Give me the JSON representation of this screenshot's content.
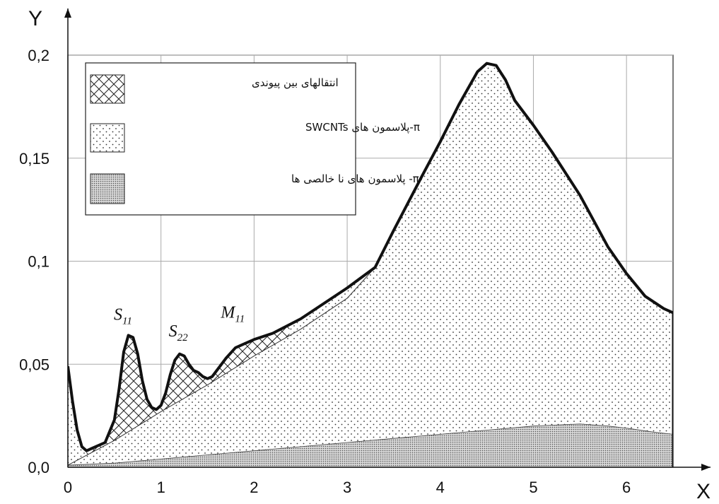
{
  "chart_data": {
    "type": "area",
    "xlabel": "X",
    "ylabel": "Y",
    "xlim": [
      0,
      6.5
    ],
    "ylim": [
      0,
      0.2
    ],
    "x_ticks": [
      "0",
      "1",
      "2",
      "3",
      "4",
      "5",
      "6"
    ],
    "y_ticks": [
      "0,0",
      "0,05",
      "0,1",
      "0,15",
      "0,2"
    ],
    "grid": true,
    "legend_placement": "top-left",
    "legend": [
      {
        "label": "انتقالهای بین پیوندی",
        "pattern": "crosshatch"
      },
      {
        "label": "π-پلاسمون های SWCNTs",
        "pattern": "sparse-dots"
      },
      {
        "label": "π- پلاسمون های نا خالصی ها",
        "pattern": "dense-dots"
      }
    ],
    "annotations": [
      {
        "text": "S",
        "sub": "11",
        "x": 0.63,
        "y": 0.066
      },
      {
        "text": "S",
        "sub": "22",
        "x": 1.22,
        "y": 0.058
      },
      {
        "text": "M",
        "sub": "11",
        "x": 1.78,
        "y": 0.067
      }
    ],
    "series": [
      {
        "role": "total",
        "x": [
          0,
          0.05,
          0.1,
          0.15,
          0.2,
          0.25,
          0.3,
          0.4,
          0.5,
          0.55,
          0.6,
          0.65,
          0.7,
          0.75,
          0.8,
          0.85,
          0.9,
          0.95,
          1.0,
          1.05,
          1.1,
          1.15,
          1.2,
          1.25,
          1.3,
          1.35,
          1.4,
          1.45,
          1.5,
          1.55,
          1.6,
          1.7,
          1.8,
          1.9,
          2.0,
          2.2,
          2.5,
          2.8,
          3.0,
          3.3,
          3.5,
          3.8,
          4.0,
          4.2,
          4.4,
          4.5,
          4.6,
          4.7,
          4.8,
          5.0,
          5.2,
          5.5,
          5.8,
          6.0,
          6.2,
          6.4,
          6.5
        ],
        "y": [
          0.049,
          0.032,
          0.018,
          0.01,
          0.008,
          0.009,
          0.01,
          0.012,
          0.023,
          0.038,
          0.056,
          0.064,
          0.063,
          0.055,
          0.042,
          0.033,
          0.029,
          0.028,
          0.03,
          0.036,
          0.045,
          0.052,
          0.055,
          0.054,
          0.05,
          0.047,
          0.046,
          0.044,
          0.043,
          0.044,
          0.047,
          0.053,
          0.058,
          0.06,
          0.062,
          0.065,
          0.072,
          0.081,
          0.087,
          0.097,
          0.115,
          0.141,
          0.158,
          0.176,
          0.192,
          0.196,
          0.195,
          0.188,
          0.178,
          0.166,
          0.153,
          0.132,
          0.107,
          0.094,
          0.083,
          0.077,
          0.075
        ]
      },
      {
        "role": "baseline",
        "x": [
          0,
          0.5,
          1.0,
          1.5,
          2.0,
          2.5,
          3.0,
          3.3
        ],
        "y": [
          0.001,
          0.013,
          0.027,
          0.04,
          0.054,
          0.067,
          0.082,
          0.097
        ]
      },
      {
        "role": "impurity",
        "x": [
          0,
          0.5,
          1.0,
          1.5,
          2.0,
          2.5,
          3.0,
          3.5,
          4.0,
          4.5,
          5.0,
          5.5,
          5.8,
          6.0,
          6.3,
          6.5
        ],
        "y": [
          0.001,
          0.002,
          0.004,
          0.006,
          0.008,
          0.01,
          0.012,
          0.014,
          0.016,
          0.018,
          0.02,
          0.021,
          0.02,
          0.019,
          0.017,
          0.016
        ]
      }
    ]
  }
}
